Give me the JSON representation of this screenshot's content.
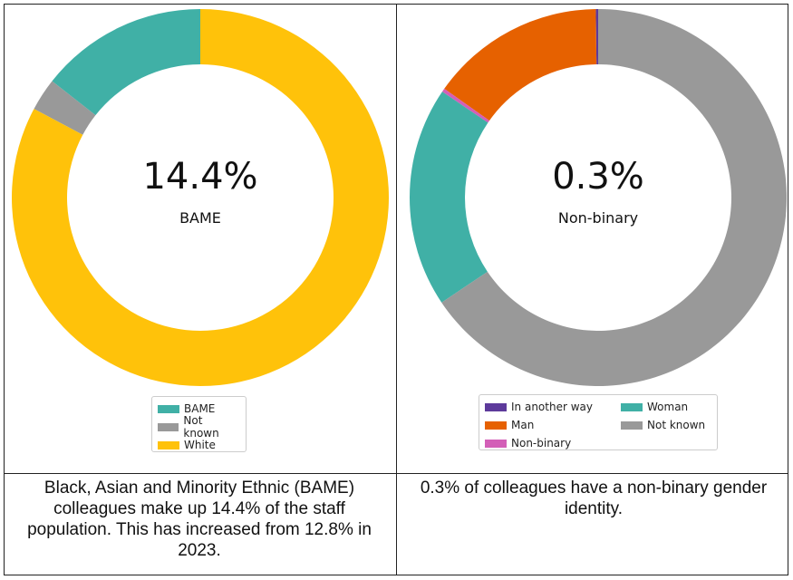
{
  "chart_data": [
    {
      "type": "pie",
      "donut": true,
      "center_value": "14.4%",
      "center_label": "BAME",
      "categories": [
        "BAME",
        "Not known",
        "White"
      ],
      "values": [
        14.4,
        2.8,
        82.8
      ],
      "colors": [
        "#40B0A6",
        "#999999",
        "#FFC20A"
      ],
      "start": "top",
      "direction": "counterclockwise",
      "legend": "bottom-center",
      "caption": "Black, Asian and Minority Ethnic (BAME) colleagues make up 14.4% of the staff population. This has increased from 12.8% in 2023."
    },
    {
      "type": "pie",
      "donut": true,
      "center_value": "0.3%",
      "center_label": "Non-binary",
      "categories": [
        "In another way",
        "Man",
        "Non-binary",
        "Woman",
        "Not known"
      ],
      "values": [
        0.2,
        15.0,
        0.3,
        18.9,
        65.6
      ],
      "colors": [
        "#5D3A9B",
        "#E66100",
        "#D35FB7",
        "#40B0A6",
        "#999999"
      ],
      "start": "top",
      "direction": "counterclockwise",
      "legend": "bottom-center",
      "caption": "0.3% of colleagues have a non-binary gender identity."
    }
  ]
}
